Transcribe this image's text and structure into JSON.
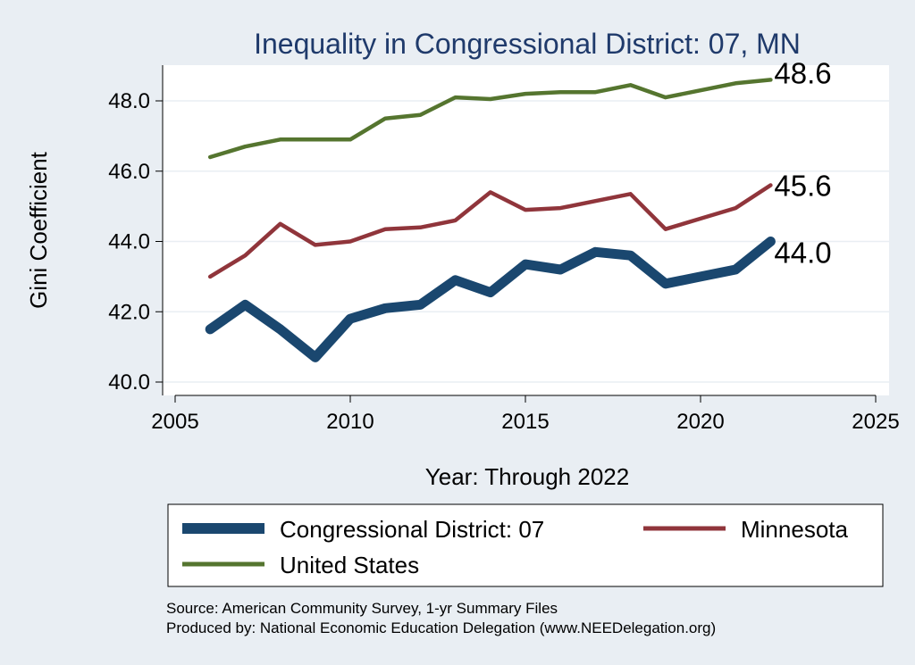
{
  "chart_data": {
    "type": "line",
    "title": "Inequality in Congressional District:  07, MN",
    "xlabel": "Year: Through 2022",
    "ylabel": "Gini Coefficient",
    "xlim": [
      2005,
      2025
    ],
    "ylim": [
      40.0,
      48.8
    ],
    "x_ticks": [
      2005,
      2010,
      2015,
      2020,
      2025
    ],
    "y_ticks": [
      40.0,
      42.0,
      44.0,
      46.0,
      48.0
    ],
    "y_tick_labels": [
      "40.0",
      "42.0",
      "44.0",
      "46.0",
      "48.0"
    ],
    "x": [
      2006,
      2007,
      2008,
      2009,
      2010,
      2011,
      2012,
      2013,
      2014,
      2015,
      2016,
      2017,
      2018,
      2019,
      2020,
      2021,
      2022
    ],
    "series": [
      {
        "name": "Congressional District:  07",
        "color": "#1a476f",
        "values": [
          41.5,
          42.2,
          41.5,
          40.7,
          41.8,
          42.1,
          42.2,
          42.9,
          42.55,
          43.35,
          43.2,
          43.7,
          43.6,
          42.8,
          43.0,
          43.2,
          44.0
        ],
        "end_label": "44.0"
      },
      {
        "name": "Minnesota",
        "color": "#90353b",
        "values": [
          43.0,
          43.6,
          44.5,
          43.9,
          44.0,
          44.35,
          44.4,
          44.6,
          45.4,
          44.9,
          44.95,
          45.15,
          45.35,
          44.35,
          44.65,
          44.95,
          45.6
        ],
        "end_label": "45.6"
      },
      {
        "name": "United States",
        "color": "#55752f",
        "values": [
          46.4,
          46.7,
          46.9,
          46.9,
          46.9,
          47.5,
          47.6,
          48.1,
          48.05,
          48.2,
          48.25,
          48.25,
          48.45,
          48.1,
          48.3,
          48.5,
          48.6
        ],
        "end_label": "48.6"
      }
    ],
    "legend": {
      "position": "bottom",
      "entries": [
        "Congressional District:  07",
        "Minnesota",
        "United States"
      ]
    },
    "grid": true
  },
  "footer": {
    "source": "Source: American Community Survey, 1-yr Summary Files",
    "produced_by": "Produced by: National Economic Education Delegation (www.NEEDelegation.org)"
  },
  "colors": {
    "background": "#e9eef3",
    "plot_background": "#ffffff",
    "title": "#1f3a6b"
  }
}
